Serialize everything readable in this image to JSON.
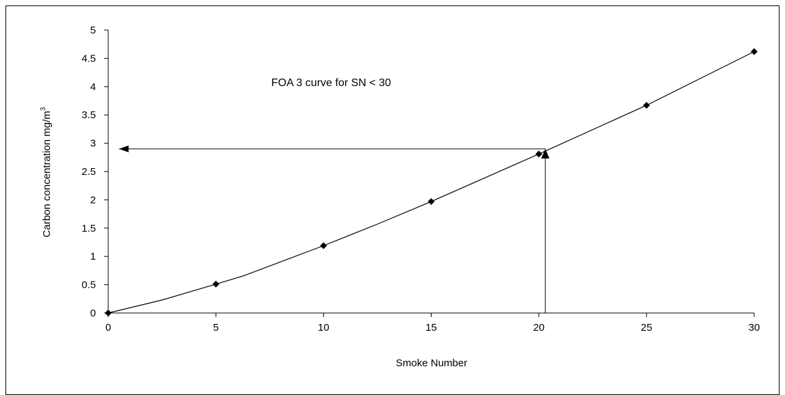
{
  "chart_data": {
    "type": "line",
    "title": "",
    "xlabel": "Smoke Number",
    "ylabel": "Carbon concentration mg/m",
    "ylabel_superscript": "3",
    "xlim": [
      0,
      30
    ],
    "ylim": [
      0,
      5
    ],
    "x_ticks": [
      0,
      5,
      10,
      15,
      20,
      25,
      30
    ],
    "y_ticks": [
      0,
      0.5,
      1,
      1.5,
      2,
      2.5,
      3,
      3.5,
      4,
      4.5,
      5
    ],
    "x_tick_labels": [
      "0",
      "5",
      "10",
      "15",
      "20",
      "25",
      "30"
    ],
    "y_tick_labels": [
      "0",
      "0.5",
      "1",
      "1.5",
      "2",
      "2.5",
      "3",
      "3.5",
      "4",
      "4.5",
      "5"
    ],
    "grid": false,
    "series": [
      {
        "curve_x": [
          0,
          2.5,
          5,
          6.3,
          10,
          12.5,
          15,
          20,
          25,
          30
        ],
        "curve_y": [
          0,
          0.23,
          0.51,
          0.66,
          1.19,
          1.57,
          1.97,
          2.81,
          3.67,
          4.62
        ],
        "marker_x": [
          0,
          5,
          10,
          15,
          20,
          25,
          30
        ],
        "marker_y": [
          0,
          0.51,
          1.19,
          1.97,
          2.81,
          3.67,
          4.62
        ]
      }
    ],
    "annotation": {
      "text": "FOA 3 curve for SN < 30",
      "lookup_sn": 20.3,
      "lookup_result": 2.9,
      "arrow_x_end": 0.5
    }
  }
}
